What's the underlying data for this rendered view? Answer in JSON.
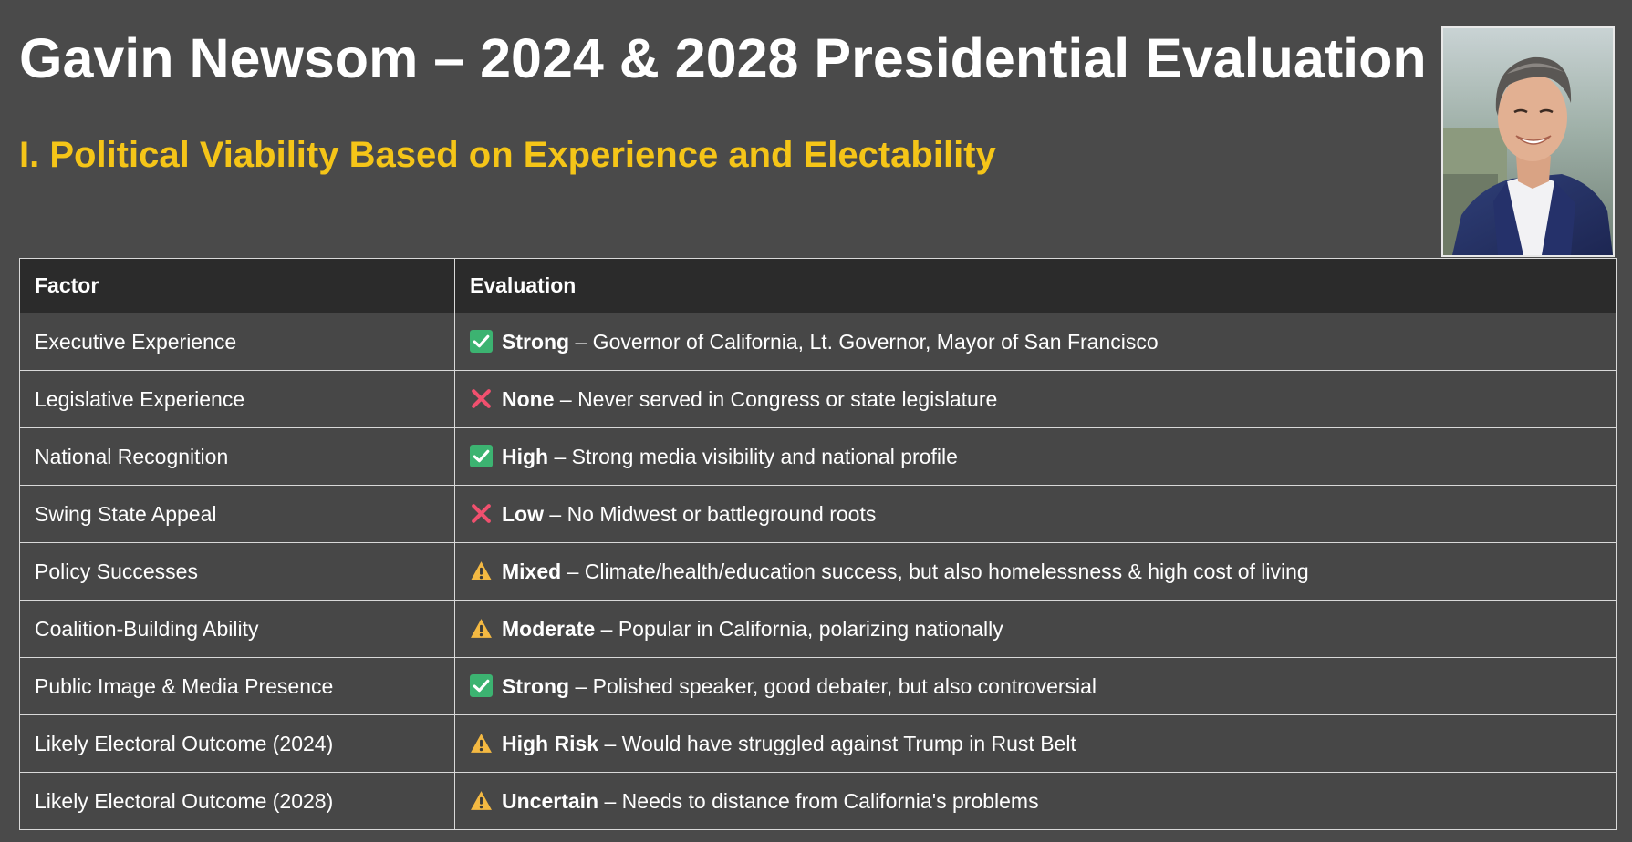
{
  "slide": {
    "title": "Gavin Newsom – 2024 & 2028 Presidential Evaluation",
    "subtitle": "I. Political Viability Based on Experience and Electability",
    "accent_color": "#f5c518",
    "background_color": "#4a4a4a"
  },
  "table": {
    "headers": {
      "factor": "Factor",
      "evaluation": "Evaluation"
    },
    "rows": [
      {
        "factor": "Executive Experience",
        "icon": "check-mark-icon",
        "rating": "Strong",
        "detail": " – Governor of California, Lt. Governor, Mayor of San Francisco"
      },
      {
        "factor": "Legislative Experience",
        "icon": "cross-mark-icon",
        "rating": "None",
        "detail": " – Never served in Congress or state legislature"
      },
      {
        "factor": "National Recognition",
        "icon": "check-mark-icon",
        "rating": "High",
        "detail": " – Strong media visibility and national profile"
      },
      {
        "factor": "Swing State Appeal",
        "icon": "cross-mark-icon",
        "rating": "Low",
        "detail": " – No Midwest or battleground roots"
      },
      {
        "factor": "Policy Successes",
        "icon": "warning-icon",
        "rating": "Mixed",
        "detail": " – Climate/health/education success, but also homelessness & high cost of living"
      },
      {
        "factor": "Coalition-Building Ability",
        "icon": "warning-icon",
        "rating": "Moderate",
        "detail": " – Popular in California, polarizing nationally"
      },
      {
        "factor": "Public Image & Media Presence",
        "icon": "check-mark-icon",
        "rating": "Strong",
        "detail": " – Polished speaker, good debater, but also controversial"
      },
      {
        "factor": "Likely Electoral Outcome (2024)",
        "icon": "warning-icon",
        "rating": "High Risk",
        "detail": " – Would have struggled against Trump in Rust Belt"
      },
      {
        "factor": "Likely Electoral Outcome (2028)",
        "icon": "warning-icon",
        "rating": "Uncertain",
        "detail": " – Needs to distance from California's problems"
      }
    ]
  },
  "icon_colors": {
    "check": "#3cb371",
    "cross": "#f0506e",
    "warning": "#f4b942"
  }
}
